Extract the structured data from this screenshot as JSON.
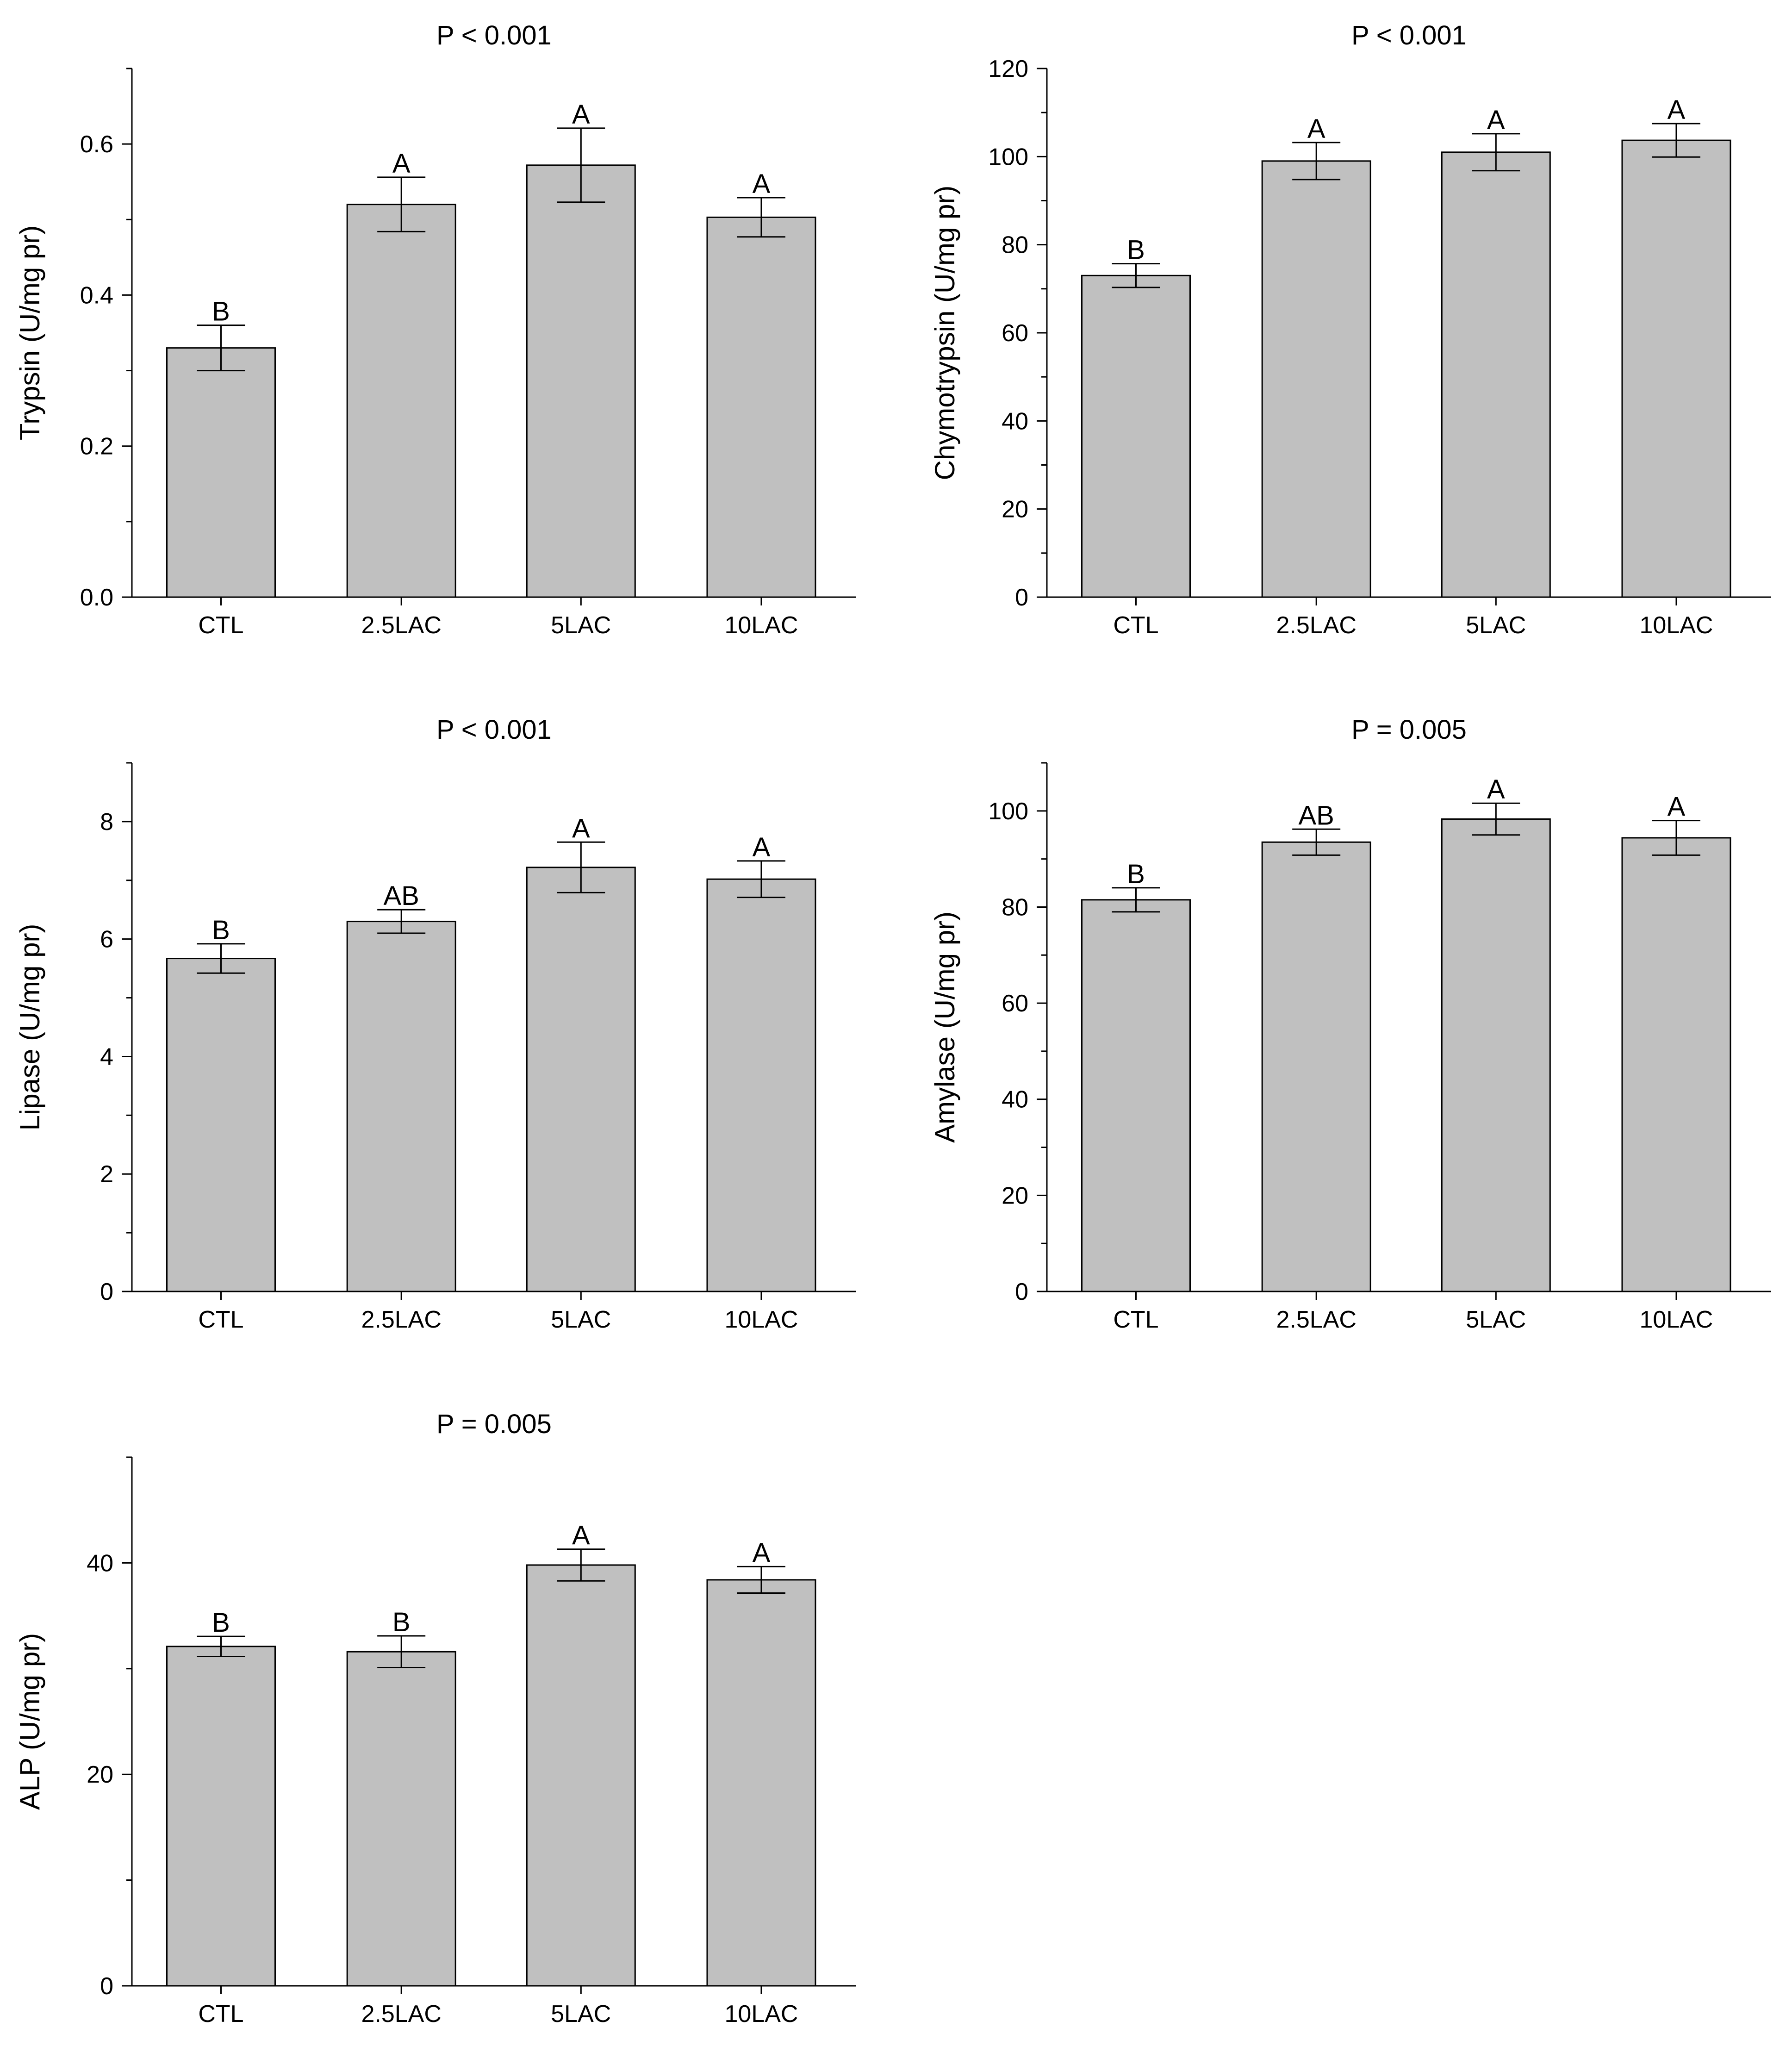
{
  "figure_kind": "multi-panel bar chart",
  "colors": {
    "bar_fill": "#c0c0c0",
    "bar_stroke": "#000000",
    "axis": "#000000",
    "text": "#000000"
  },
  "chart_data": [
    {
      "type": "bar",
      "title": "P < 0.001",
      "xlabel": "",
      "ylabel": "Trypsin (U/mg pr)",
      "categories": [
        "CTL",
        "2.5LAC",
        "5LAC",
        "10LAC"
      ],
      "values": [
        0.33,
        0.52,
        0.572,
        0.503
      ],
      "errors": [
        0.03,
        0.036,
        0.049,
        0.026
      ],
      "letters": [
        "B",
        "A",
        "A",
        "A"
      ],
      "ylim": [
        0,
        0.7
      ],
      "yticks": [
        0,
        0.2,
        0.4,
        0.6
      ],
      "ytick_labels": [
        "0.0",
        "0.2",
        "0.4",
        "0.6"
      ],
      "yminor": [
        0.1,
        0.3,
        0.5,
        0.7
      ]
    },
    {
      "type": "bar",
      "title": "P < 0.001",
      "xlabel": "",
      "ylabel": "Chymotrypsin (U/mg pr)",
      "categories": [
        "CTL",
        "2.5LAC",
        "5LAC",
        "10LAC"
      ],
      "values": [
        73,
        99,
        101,
        103.7
      ],
      "errors": [
        2.7,
        4.2,
        4.2,
        3.8
      ],
      "letters": [
        "B",
        "A",
        "A",
        "A"
      ],
      "ylim": [
        0,
        120
      ],
      "yticks": [
        0,
        20,
        40,
        60,
        80,
        100,
        120
      ],
      "ytick_labels": [
        "0",
        "20",
        "40",
        "60",
        "80",
        "100",
        "120"
      ],
      "yminor": [
        10,
        30,
        50,
        70,
        90,
        110
      ]
    },
    {
      "type": "bar",
      "title": "P < 0.001",
      "xlabel": "",
      "ylabel": "Lipase (U/mg pr)",
      "categories": [
        "CTL",
        "2.5LAC",
        "5LAC",
        "10LAC"
      ],
      "values": [
        5.67,
        6.3,
        7.22,
        7.02
      ],
      "errors": [
        0.25,
        0.2,
        0.43,
        0.31
      ],
      "letters": [
        "B",
        "AB",
        "A",
        "A"
      ],
      "ylim": [
        0,
        9
      ],
      "yticks": [
        0,
        2,
        4,
        6,
        8
      ],
      "ytick_labels": [
        "0",
        "2",
        "4",
        "6",
        "8"
      ],
      "yminor": [
        1,
        3,
        5,
        7,
        9
      ]
    },
    {
      "type": "bar",
      "title": "P = 0.005",
      "xlabel": "",
      "ylabel": "Amylase (U/mg pr)",
      "categories": [
        "CTL",
        "2.5LAC",
        "5LAC",
        "10LAC"
      ],
      "values": [
        81.5,
        93.5,
        98.3,
        94.4
      ],
      "errors": [
        2.5,
        2.7,
        3.3,
        3.6
      ],
      "letters": [
        "B",
        "AB",
        "A",
        "A"
      ],
      "ylim": [
        0,
        110
      ],
      "yticks": [
        0,
        20,
        40,
        60,
        80,
        100
      ],
      "ytick_labels": [
        "0",
        "20",
        "40",
        "60",
        "80",
        "100"
      ],
      "yminor": [
        10,
        30,
        50,
        70,
        90,
        110
      ]
    },
    {
      "type": "bar",
      "title": "P = 0.005",
      "xlabel": "",
      "ylabel": "ALP (U/mg pr)",
      "categories": [
        "CTL",
        "2.5LAC",
        "5LAC",
        "10LAC"
      ],
      "values": [
        32.1,
        31.6,
        39.8,
        38.4
      ],
      "errors": [
        0.95,
        1.5,
        1.5,
        1.25
      ],
      "letters": [
        "B",
        "B",
        "A",
        "A"
      ],
      "ylim": [
        0,
        50
      ],
      "yticks": [
        0,
        20,
        40
      ],
      "ytick_labels": [
        "0",
        "20",
        "40"
      ],
      "yminor": [
        10,
        30,
        50
      ]
    }
  ]
}
